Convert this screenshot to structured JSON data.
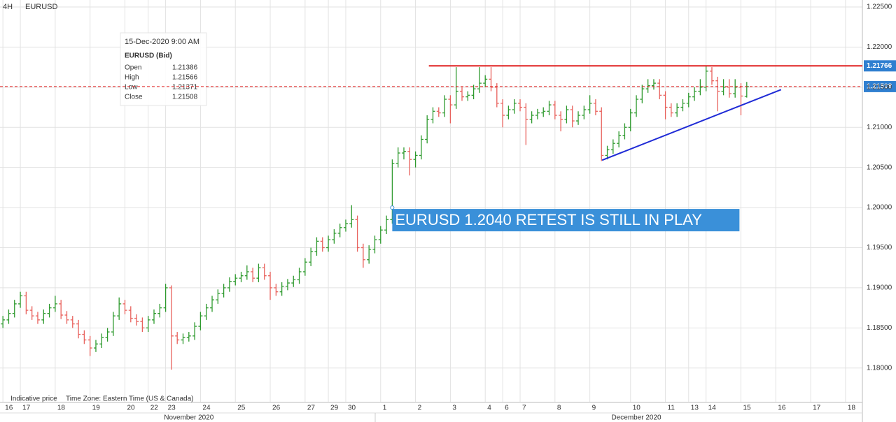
{
  "header": {
    "timeframe": "4H",
    "symbol": "EURUSD"
  },
  "info_box": {
    "date": "15-Dec-2020 9:00 AM",
    "title": "EURUSD (Bid)"
  },
  "footer": {
    "note": "Indicative price",
    "timezone": "Time Zone: Eastern Time (US & Canada)"
  },
  "chart_data": {
    "type": "ohlc",
    "fields": [
      "Open",
      "High",
      "Low",
      "Close"
    ],
    "up_color": "#2e9a2e",
    "down_color": "#e8615c",
    "grid": true,
    "xlim": [
      -0.5,
      147.9
    ],
    "ylim": [
      1.1758,
      1.22587
    ],
    "yticks": [
      {
        "value": 1.18,
        "label": "1.18000"
      },
      {
        "value": 1.185,
        "label": "1.18500"
      },
      {
        "value": 1.19,
        "label": "1.19000"
      },
      {
        "value": 1.195,
        "label": "1.19500"
      },
      {
        "value": 1.2,
        "label": "1.20000"
      },
      {
        "value": 1.205,
        "label": "1.20500"
      },
      {
        "value": 1.21,
        "label": "1.21000"
      },
      {
        "value": 1.215,
        "label": "1.21500"
      },
      {
        "value": 1.22,
        "label": "1.22000"
      },
      {
        "value": 1.225,
        "label": "1.22500"
      }
    ],
    "xticks": [
      {
        "value": 0,
        "label": "16"
      },
      {
        "value": 3,
        "label": "17"
      },
      {
        "value": 9,
        "label": "18"
      },
      {
        "value": 15,
        "label": "19"
      },
      {
        "value": 21,
        "label": "20"
      },
      {
        "value": 25,
        "label": "22"
      },
      {
        "value": 28,
        "label": "23"
      },
      {
        "value": 34,
        "label": "24"
      },
      {
        "value": 40,
        "label": "25"
      },
      {
        "value": 46,
        "label": "26"
      },
      {
        "value": 52,
        "label": "27"
      },
      {
        "value": 56,
        "label": "29"
      },
      {
        "value": 59,
        "label": "30"
      },
      {
        "value": 65,
        "label": "1"
      },
      {
        "value": 71,
        "label": "2"
      },
      {
        "value": 77,
        "label": "3"
      },
      {
        "value": 83,
        "label": "4"
      },
      {
        "value": 86,
        "label": "6"
      },
      {
        "value": 89,
        "label": "7"
      },
      {
        "value": 95,
        "label": "8"
      },
      {
        "value": 101,
        "label": "9"
      },
      {
        "value": 108,
        "label": "10"
      },
      {
        "value": 114,
        "label": "11"
      },
      {
        "value": 118,
        "label": "13"
      },
      {
        "value": 121,
        "label": "14"
      },
      {
        "value": 127,
        "label": "15"
      },
      {
        "value": 133,
        "label": "16"
      },
      {
        "value": 139,
        "label": "17"
      },
      {
        "value": 145,
        "label": "18"
      }
    ],
    "xticks_secondary": [
      {
        "value": 32,
        "label": "November 2020"
      },
      {
        "value": 109,
        "label": "December 2020"
      }
    ],
    "resistance": {
      "value": 1.21766,
      "x_start": 73.3,
      "color": "#e02020"
    },
    "last_price": {
      "value": 1.21508,
      "color": "#e02020"
    },
    "trendline": {
      "x": [
        103.1,
        133.9
      ],
      "y": [
        1.2059,
        1.2147
      ],
      "color": "#1f2bd6"
    },
    "annotation": {
      "text": "EURUSD 1.2040 RETEST IS STILL IN PLAY",
      "x": 67,
      "y": 1.2
    },
    "ohlc": [
      [
        1.1855,
        1.1865,
        1.185,
        1.186
      ],
      [
        1.186,
        1.1873,
        1.1855,
        1.1868
      ],
      [
        1.1868,
        1.1885,
        1.1863,
        1.188
      ],
      [
        1.188,
        1.1895,
        1.1875,
        1.189
      ],
      [
        1.189,
        1.1895,
        1.1867,
        1.1872
      ],
      [
        1.1872,
        1.1877,
        1.186,
        1.1865
      ],
      [
        1.1865,
        1.187,
        1.1855,
        1.186
      ],
      [
        1.186,
        1.1873,
        1.1855,
        1.1868
      ],
      [
        1.1868,
        1.188,
        1.1863,
        1.1875
      ],
      [
        1.1875,
        1.189,
        1.187,
        1.188
      ],
      [
        1.188,
        1.1885,
        1.1861,
        1.1866
      ],
      [
        1.1866,
        1.1871,
        1.1855,
        1.186
      ],
      [
        1.186,
        1.1865,
        1.185,
        1.1855
      ],
      [
        1.1855,
        1.186,
        1.1837,
        1.1842
      ],
      [
        1.1842,
        1.1847,
        1.183,
        1.1835
      ],
      [
        1.1835,
        1.184,
        1.1815,
        1.1825
      ],
      [
        1.1825,
        1.1835,
        1.182,
        1.183
      ],
      [
        1.183,
        1.1843,
        1.1825,
        1.1838
      ],
      [
        1.1838,
        1.185,
        1.1833,
        1.1845
      ],
      [
        1.1845,
        1.187,
        1.184,
        1.1865
      ],
      [
        1.1865,
        1.1888,
        1.186,
        1.188
      ],
      [
        1.188,
        1.1885,
        1.1867,
        1.1872
      ],
      [
        1.1872,
        1.1877,
        1.1857,
        1.1862
      ],
      [
        1.1862,
        1.1867,
        1.1853,
        1.1858
      ],
      [
        1.1858,
        1.1863,
        1.1845,
        1.185
      ],
      [
        1.185,
        1.1865,
        1.1845,
        1.186
      ],
      [
        1.186,
        1.1873,
        1.1855,
        1.1868
      ],
      [
        1.1868,
        1.188,
        1.1863,
        1.1875
      ],
      [
        1.1875,
        1.1905,
        1.187,
        1.19
      ],
      [
        1.19,
        1.1903,
        1.1798,
        1.184
      ],
      [
        1.184,
        1.1845,
        1.183,
        1.1835
      ],
      [
        1.1835,
        1.1843,
        1.183,
        1.1838
      ],
      [
        1.1838,
        1.1845,
        1.1833,
        1.184
      ],
      [
        1.184,
        1.1857,
        1.1835,
        1.1852
      ],
      [
        1.1852,
        1.187,
        1.1847,
        1.1865
      ],
      [
        1.1865,
        1.188,
        1.186,
        1.1875
      ],
      [
        1.1875,
        1.189,
        1.187,
        1.1885
      ],
      [
        1.1885,
        1.1898,
        1.188,
        1.1893
      ],
      [
        1.1893,
        1.1905,
        1.1888,
        1.19
      ],
      [
        1.19,
        1.1913,
        1.1895,
        1.1908
      ],
      [
        1.1908,
        1.1917,
        1.1903,
        1.1912
      ],
      [
        1.1912,
        1.192,
        1.1907,
        1.1915
      ],
      [
        1.1915,
        1.1928,
        1.191,
        1.192
      ],
      [
        1.192,
        1.1925,
        1.1907,
        1.1912
      ],
      [
        1.1912,
        1.193,
        1.1907,
        1.1925
      ],
      [
        1.1925,
        1.193,
        1.191,
        1.1915
      ],
      [
        1.1915,
        1.192,
        1.1885,
        1.19
      ],
      [
        1.19,
        1.1905,
        1.189,
        1.1895
      ],
      [
        1.1895,
        1.1907,
        1.189,
        1.1902
      ],
      [
        1.1902,
        1.1911,
        1.1897,
        1.1906
      ],
      [
        1.1906,
        1.1915,
        1.1901,
        1.191
      ],
      [
        1.191,
        1.1925,
        1.1905,
        1.192
      ],
      [
        1.192,
        1.1937,
        1.1915,
        1.1932
      ],
      [
        1.1932,
        1.195,
        1.1927,
        1.1945
      ],
      [
        1.1945,
        1.1963,
        1.194,
        1.1958
      ],
      [
        1.1958,
        1.1963,
        1.1945,
        1.195
      ],
      [
        1.195,
        1.1965,
        1.1945,
        1.196
      ],
      [
        1.196,
        1.1973,
        1.1955,
        1.1968
      ],
      [
        1.1968,
        1.198,
        1.1963,
        1.1975
      ],
      [
        1.1975,
        1.1985,
        1.197,
        1.198
      ],
      [
        1.198,
        1.2003,
        1.1975,
        1.1985
      ],
      [
        1.1985,
        1.199,
        1.1945,
        1.195
      ],
      [
        1.195,
        1.1955,
        1.1925,
        1.1935
      ],
      [
        1.1935,
        1.1953,
        1.193,
        1.1948
      ],
      [
        1.1948,
        1.1965,
        1.1943,
        1.196
      ],
      [
        1.196,
        1.1977,
        1.1955,
        1.1972
      ],
      [
        1.1972,
        1.199,
        1.1967,
        1.1985
      ],
      [
        1.1985,
        1.206,
        1.198,
        1.2055
      ],
      [
        1.2055,
        1.2075,
        1.205,
        1.2068
      ],
      [
        1.2068,
        1.2075,
        1.206,
        1.207
      ],
      [
        1.207,
        1.2075,
        1.204,
        1.206
      ],
      [
        1.206,
        1.207,
        1.205,
        1.2065
      ],
      [
        1.2065,
        1.209,
        1.206,
        1.2085
      ],
      [
        1.2085,
        1.2115,
        1.208,
        1.211
      ],
      [
        1.211,
        1.2125,
        1.2105,
        1.212
      ],
      [
        1.212,
        1.2125,
        1.2113,
        1.2118
      ],
      [
        1.2118,
        1.214,
        1.2113,
        1.2135
      ],
      [
        1.2135,
        1.214,
        1.2105,
        1.2128
      ],
      [
        1.2128,
        1.2175,
        1.2123,
        1.2145
      ],
      [
        1.2145,
        1.215,
        1.2133,
        1.2138
      ],
      [
        1.2138,
        1.2145,
        1.2133,
        1.214
      ],
      [
        1.214,
        1.2153,
        1.2135,
        1.2148
      ],
      [
        1.2148,
        1.2175,
        1.2143,
        1.2155
      ],
      [
        1.2155,
        1.2165,
        1.215,
        1.216
      ],
      [
        1.216,
        1.2175,
        1.2145,
        1.215
      ],
      [
        1.215,
        1.2155,
        1.2125,
        1.213
      ],
      [
        1.213,
        1.2135,
        1.21,
        1.2115
      ],
      [
        1.2115,
        1.2127,
        1.211,
        1.2122
      ],
      [
        1.2122,
        1.2135,
        1.2117,
        1.213
      ],
      [
        1.213,
        1.2135,
        1.212,
        1.2125
      ],
      [
        1.2125,
        1.213,
        1.2078,
        1.211
      ],
      [
        1.211,
        1.212,
        1.2105,
        1.2115
      ],
      [
        1.2115,
        1.2123,
        1.211,
        1.2118
      ],
      [
        1.2118,
        1.2125,
        1.2113,
        1.212
      ],
      [
        1.212,
        1.2133,
        1.2115,
        1.2128
      ],
      [
        1.2128,
        1.2133,
        1.211,
        1.2115
      ],
      [
        1.2115,
        1.212,
        1.2095,
        1.211
      ],
      [
        1.211,
        1.2127,
        1.2105,
        1.2122
      ],
      [
        1.2122,
        1.2127,
        1.21,
        1.2108
      ],
      [
        1.2108,
        1.212,
        1.2103,
        1.2115
      ],
      [
        1.2115,
        1.2127,
        1.211,
        1.2122
      ],
      [
        1.2122,
        1.214,
        1.2117,
        1.213
      ],
      [
        1.213,
        1.2135,
        1.2115,
        1.212
      ],
      [
        1.212,
        1.2125,
        1.2058,
        1.2065
      ],
      [
        1.2065,
        1.2077,
        1.206,
        1.2072
      ],
      [
        1.2072,
        1.2085,
        1.2067,
        1.208
      ],
      [
        1.208,
        1.2095,
        1.2075,
        1.209
      ],
      [
        1.209,
        1.2105,
        1.2085,
        1.21
      ],
      [
        1.21,
        1.2123,
        1.2095,
        1.2118
      ],
      [
        1.2118,
        1.214,
        1.2113,
        1.2135
      ],
      [
        1.2135,
        1.2153,
        1.213,
        1.2148
      ],
      [
        1.2148,
        1.216,
        1.2143,
        1.2152
      ],
      [
        1.2152,
        1.216,
        1.2147,
        1.2155
      ],
      [
        1.2155,
        1.216,
        1.2135,
        1.214
      ],
      [
        1.214,
        1.2145,
        1.211,
        1.2125
      ],
      [
        1.2125,
        1.213,
        1.2113,
        1.2118
      ],
      [
        1.2118,
        1.213,
        1.2113,
        1.2125
      ],
      [
        1.2125,
        1.2135,
        1.212,
        1.213
      ],
      [
        1.213,
        1.2143,
        1.2125,
        1.2138
      ],
      [
        1.2138,
        1.215,
        1.2133,
        1.2145
      ],
      [
        1.2145,
        1.216,
        1.214,
        1.215
      ],
      [
        1.215,
        1.2177,
        1.2145,
        1.217
      ],
      [
        1.217,
        1.2175,
        1.2153,
        1.2158
      ],
      [
        1.2158,
        1.2163,
        1.212,
        1.2145
      ],
      [
        1.2145,
        1.216,
        1.214,
        1.215
      ],
      [
        1.215,
        1.216,
        1.2137,
        1.2142
      ],
      [
        1.2142,
        1.216,
        1.2137,
        1.215
      ],
      [
        1.215,
        1.2155,
        1.2115,
        1.2139
      ],
      [
        1.21386,
        1.21566,
        1.21371,
        1.21508
      ]
    ]
  }
}
